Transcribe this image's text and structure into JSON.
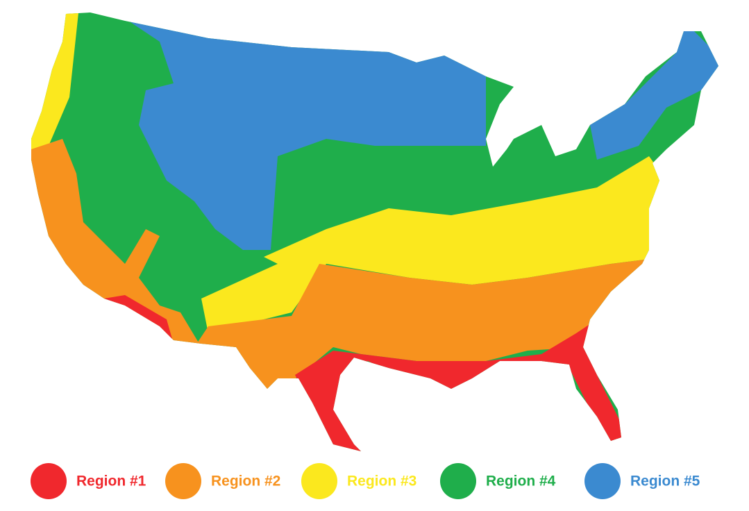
{
  "legend": [
    {
      "label": "Region #1",
      "color": "#f0282d"
    },
    {
      "label": "Region #2",
      "color": "#f7921e"
    },
    {
      "label": "Region #3",
      "color": "#fbe81e"
    },
    {
      "label": "Region #4",
      "color": "#1fae4b"
    },
    {
      "label": "Region #5",
      "color": "#3b8ad0"
    }
  ]
}
